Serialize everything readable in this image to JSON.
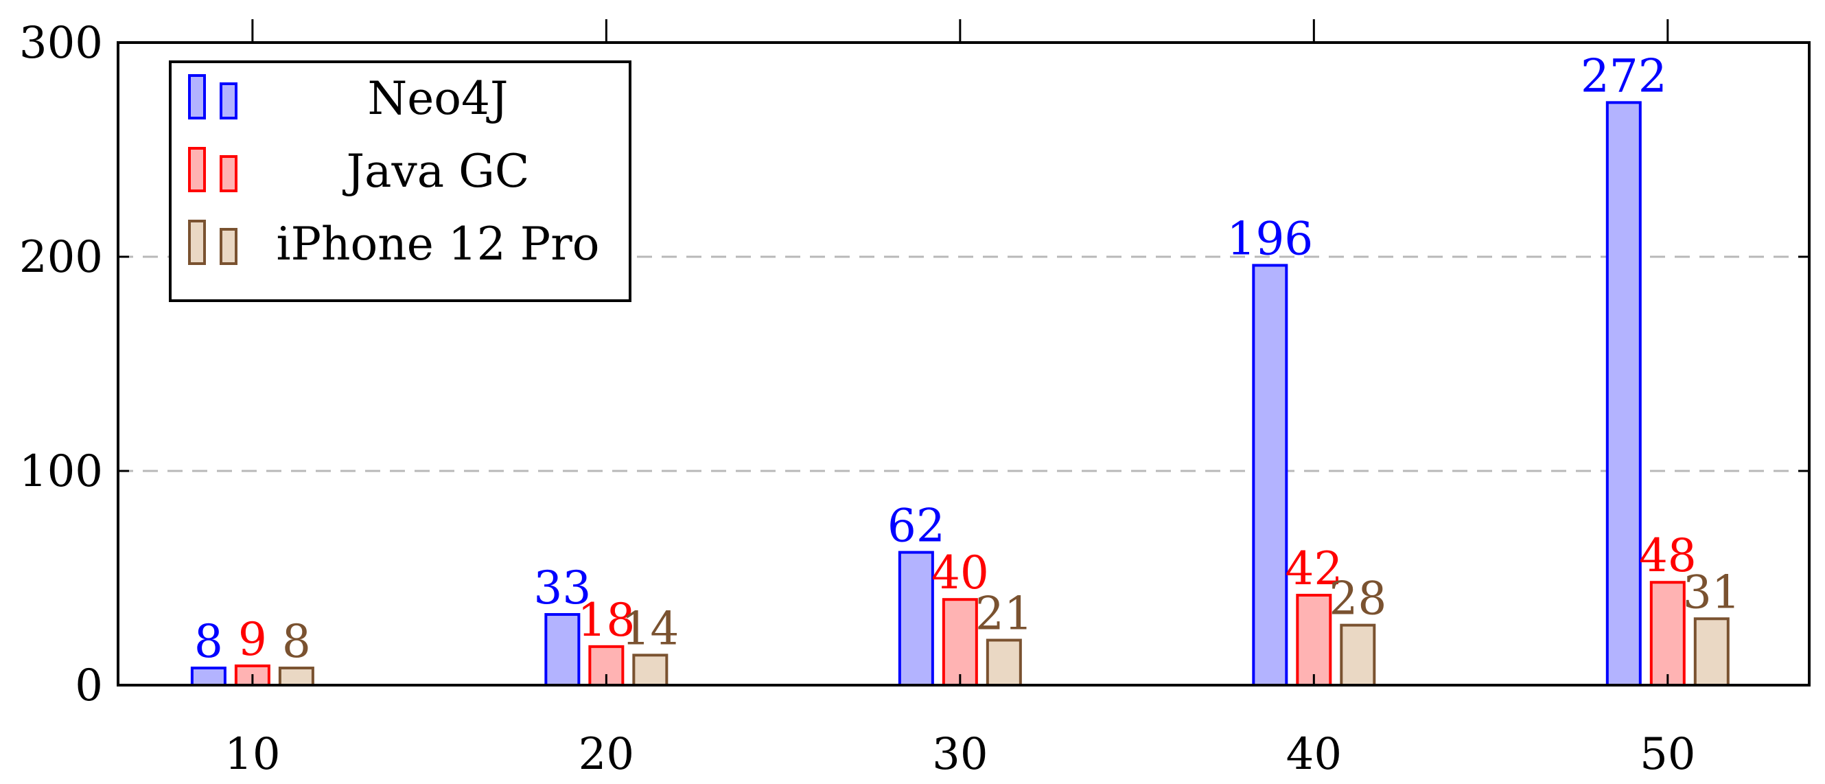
{
  "chart_data": {
    "type": "bar",
    "x": [
      10,
      20,
      30,
      40,
      50
    ],
    "ylim": [
      0,
      300
    ],
    "xlim": [
      6.2,
      54
    ],
    "y_ticks": [
      0,
      100,
      200,
      300
    ],
    "x_ticks": [
      10,
      20,
      30,
      40,
      50
    ],
    "grid": "horizontal dashed",
    "legend_position": "top-left",
    "series": [
      {
        "name": "Neo4J",
        "values": [
          8,
          33,
          62,
          196,
          272
        ],
        "fill": "#b3b3ff",
        "stroke": "#0000ff",
        "label_color": "#0000ff"
      },
      {
        "name": "Java GC",
        "values": [
          9,
          18,
          40,
          42,
          48
        ],
        "fill": "#ffb3b3",
        "stroke": "#ff0000",
        "label_color": "#ff0000"
      },
      {
        "name": "iPhone 12 Pro",
        "values": [
          8,
          14,
          21,
          28,
          31
        ],
        "fill": "#ead8c4",
        "stroke": "#7a5230",
        "label_color": "#7a5230"
      }
    ]
  }
}
